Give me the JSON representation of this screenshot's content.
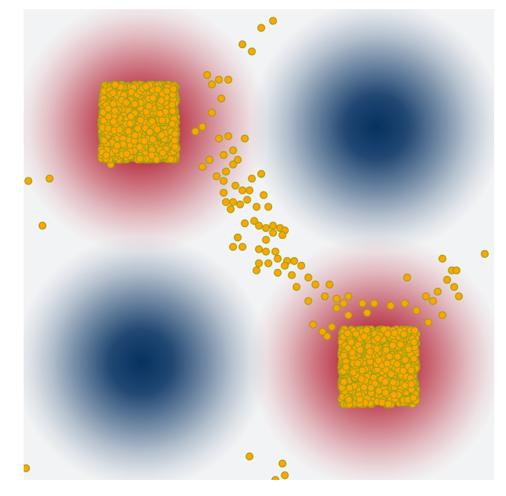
{
  "chart_data": {
    "type": "scatter",
    "title": "",
    "xlabel": "",
    "ylabel": "",
    "axes_visible": false,
    "grid": false,
    "xlim": [
      -1,
      1
    ],
    "ylim": [
      -1,
      1
    ],
    "background": {
      "type": "heatmap",
      "colormap": "RdBu",
      "positive_color": "#b2182b",
      "negative_color": "#053061",
      "zero_color": "#f2f3f4",
      "peaks": [
        {
          "x": -0.5,
          "y": 0.5,
          "sign": "positive"
        },
        {
          "x": 0.5,
          "y": 0.5,
          "sign": "negative"
        },
        {
          "x": -0.5,
          "y": -0.5,
          "sign": "negative"
        },
        {
          "x": 0.5,
          "y": -0.5,
          "sign": "positive"
        }
      ]
    },
    "series": [
      {
        "color": "#ffa500",
        "edge_color": "#a0a010",
        "clusters": [
          {
            "center": [
              -0.51,
              0.52
            ],
            "half_width": 0.16,
            "approx_count": 1500
          },
          {
            "center": [
              0.51,
              -0.52
            ],
            "half_width": 0.16,
            "approx_count": 1500
          }
        ],
        "outliers": [
          [
            0.06,
            0.95
          ],
          [
            0.01,
            0.92
          ],
          [
            -0.03,
            0.82
          ],
          [
            -0.07,
            0.85
          ],
          [
            -0.13,
            0.7
          ],
          [
            -0.17,
            0.7
          ],
          [
            -0.2,
            0.68
          ],
          [
            -0.22,
            0.72
          ],
          [
            -0.16,
            0.62
          ],
          [
            -0.2,
            0.56
          ],
          [
            -0.24,
            0.5
          ],
          [
            -0.27,
            0.48
          ],
          [
            -0.13,
            0.46
          ],
          [
            -0.17,
            0.45
          ],
          [
            -0.06,
            0.45
          ],
          [
            -0.11,
            0.4
          ],
          [
            -0.15,
            0.38
          ],
          [
            -0.21,
            0.36
          ],
          [
            -0.24,
            0.33
          ],
          [
            -0.09,
            0.36
          ],
          [
            -0.11,
            0.34
          ],
          [
            -0.14,
            0.31
          ],
          [
            -0.03,
            0.28
          ],
          [
            0.01,
            0.3
          ],
          [
            -0.18,
            0.29
          ],
          [
            -0.15,
            0.27
          ],
          [
            -0.1,
            0.25
          ],
          [
            -0.07,
            0.23
          ],
          [
            -0.04,
            0.23
          ],
          [
            0.02,
            0.21
          ],
          [
            -0.15,
            0.22
          ],
          [
            -0.14,
            0.18
          ],
          [
            -0.11,
            0.18
          ],
          [
            -0.08,
            0.17
          ],
          [
            -0.05,
            0.19
          ],
          [
            -0.01,
            0.16
          ],
          [
            -0.12,
            0.15
          ],
          [
            0.04,
            0.16
          ],
          [
            0.0,
            0.08
          ],
          [
            0.03,
            0.07
          ],
          [
            0.06,
            0.08
          ],
          [
            0.09,
            0.07
          ],
          [
            0.11,
            0.06
          ],
          [
            -0.06,
            0.09
          ],
          [
            -0.02,
            0.1
          ],
          [
            0.06,
            0.05
          ],
          [
            0.03,
            0.02
          ],
          [
            0.1,
            0.04
          ],
          [
            -0.09,
            0.03
          ],
          [
            -0.11,
            -0.01
          ],
          [
            -0.07,
            -0.01
          ],
          [
            0.0,
            -0.02
          ],
          [
            0.03,
            -0.03
          ],
          [
            0.07,
            -0.03
          ],
          [
            0.08,
            -0.06
          ],
          [
            0.12,
            -0.07
          ],
          [
            0.15,
            -0.07
          ],
          [
            0.0,
            -0.08
          ],
          [
            0.04,
            -0.08
          ],
          [
            0.11,
            -0.09
          ],
          [
            0.18,
            -0.09
          ],
          [
            -0.01,
            -0.11
          ],
          [
            0.08,
            -0.12
          ],
          [
            0.14,
            -0.13
          ],
          [
            0.16,
            -0.18
          ],
          [
            0.21,
            -0.14
          ],
          [
            0.24,
            -0.17
          ],
          [
            0.3,
            -0.17
          ],
          [
            0.21,
            -0.24
          ],
          [
            0.28,
            -0.22
          ],
          [
            0.33,
            -0.23
          ],
          [
            0.36,
            -0.25
          ],
          [
            0.33,
            -0.27
          ],
          [
            0.38,
            -0.22
          ],
          [
            0.38,
            -0.3
          ],
          [
            0.44,
            -0.25
          ],
          [
            0.46,
            -0.29
          ],
          [
            0.49,
            -0.25
          ],
          [
            0.56,
            -0.26
          ],
          [
            0.62,
            -0.25
          ],
          [
            0.67,
            -0.28
          ],
          [
            0.71,
            -0.22
          ],
          [
            0.76,
            -0.2
          ],
          [
            0.8,
            -0.15
          ],
          [
            0.83,
            -0.18
          ],
          [
            0.74,
            -0.24
          ],
          [
            0.72,
            -0.33
          ],
          [
            0.78,
            -0.06
          ],
          [
            0.82,
            -0.11
          ],
          [
            0.85,
            -0.22
          ],
          [
            0.84,
            -0.11
          ],
          [
            0.78,
            -0.3
          ],
          [
            0.63,
            -0.14
          ],
          [
            0.96,
            -0.04
          ],
          [
            -0.98,
            0.27
          ],
          [
            -0.89,
            0.28
          ],
          [
            -0.92,
            0.08
          ],
          [
            -0.63,
            0.34
          ],
          [
            -0.59,
            0.36
          ],
          [
            0.23,
            -0.34
          ],
          [
            0.27,
            -0.37
          ],
          [
            0.29,
            -0.39
          ],
          [
            0.31,
            -0.35
          ],
          [
            -0.99,
            -0.95
          ],
          [
            -0.04,
            -0.9
          ],
          [
            0.1,
            -0.93
          ],
          [
            0.11,
            -0.98
          ],
          [
            0.07,
            -1.0
          ],
          [
            0.03,
            -1.04
          ]
        ]
      }
    ]
  }
}
